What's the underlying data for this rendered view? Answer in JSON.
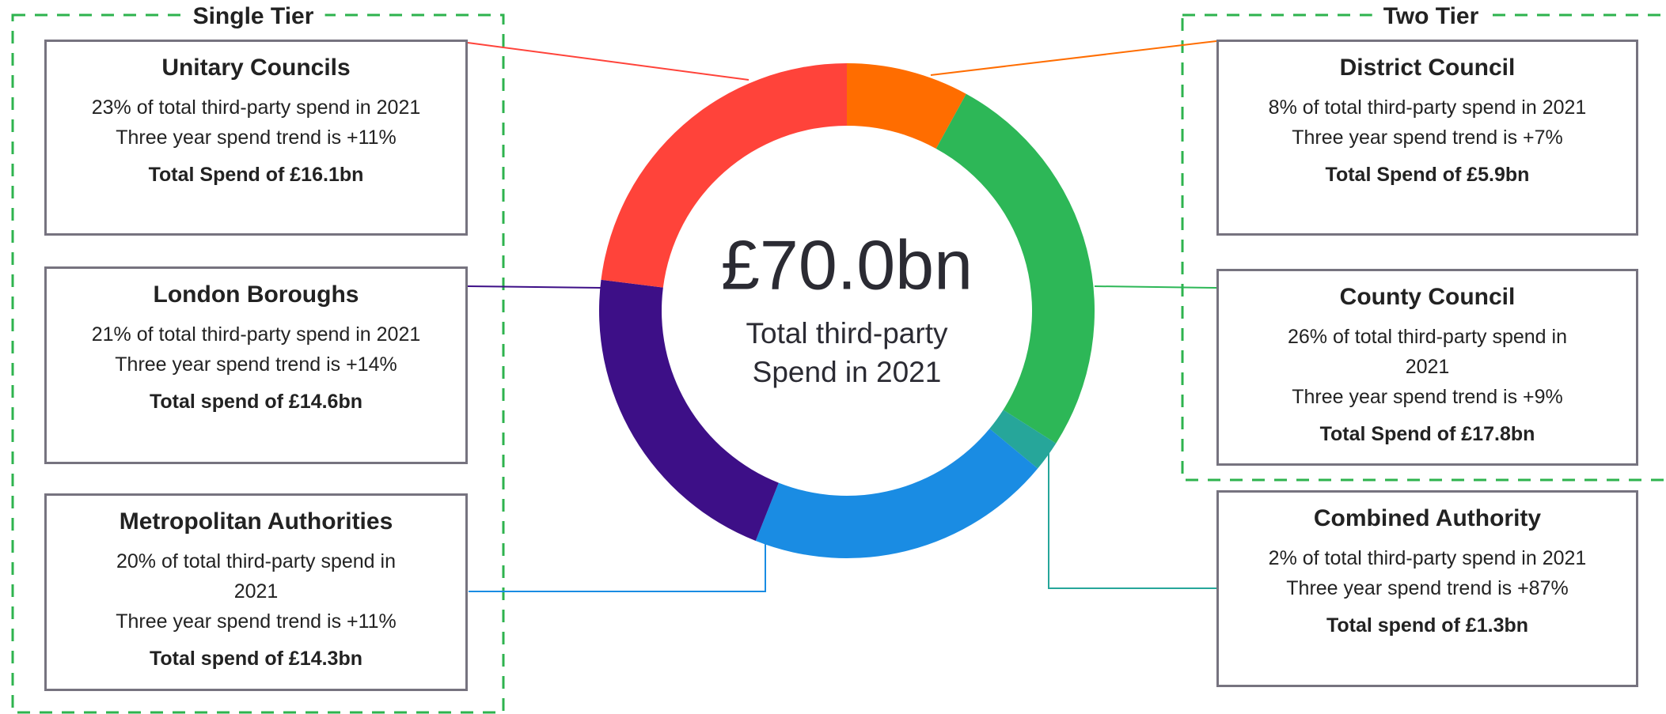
{
  "chart_data": {
    "type": "donut",
    "center_value": "£70.0bn",
    "center_label": [
      "Total third-party",
      "Spend in 2021"
    ],
    "categories": [
      "District Council",
      "County Council",
      "Combined Authority",
      "Metropolitan Authorities",
      "London Boroughs",
      "Unitary Councils"
    ],
    "values": [
      8,
      26,
      2,
      20,
      21,
      23
    ],
    "colors": [
      "#ff6d00",
      "#2db757",
      "#26a69a",
      "#1a8ce3",
      "#3d0f87",
      "#ff433a"
    ]
  },
  "groups": [
    {
      "label": "Single Tier"
    },
    {
      "label": "Two Tier"
    }
  ],
  "boxes": [
    {
      "title": "Unitary Councils",
      "lines": [
        "23% of total third-party spend in 2021",
        "Three year spend trend is +11%"
      ],
      "total": "Total Spend of £16.1bn"
    },
    {
      "title": "London Boroughs",
      "lines": [
        "21% of total third-party spend in 2021",
        "Three year spend trend is +14%"
      ],
      "total": "Total spend of £14.6bn"
    },
    {
      "title": "Metropolitan Authorities",
      "lines": [
        "20% of total third-party spend in",
        "2021",
        "Three year spend trend is +11%"
      ],
      "total": "Total spend of £14.3bn"
    },
    {
      "title": "District Council",
      "lines": [
        "8% of total third-party spend in 2021",
        "Three year spend trend is +7%"
      ],
      "total": "Total Spend of £5.9bn"
    },
    {
      "title": "County Council",
      "lines": [
        "26% of total third-party spend in",
        "2021",
        "Three year spend trend is +9%"
      ],
      "total": "Total Spend of £17.8bn"
    },
    {
      "title": "Combined Authority",
      "lines": [
        "2% of total third-party spend in 2021",
        "Three year spend trend is +87%"
      ],
      "total": "Total spend of £1.3bn"
    }
  ]
}
